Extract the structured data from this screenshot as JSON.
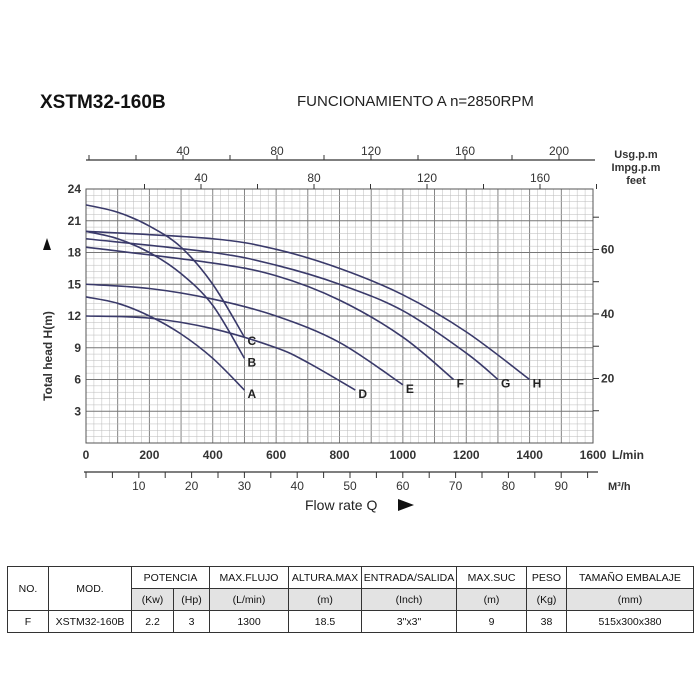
{
  "header": {
    "model": "XSTM32-160B",
    "subtitle": "FUNCIONAMIENTO A n=2850RPM"
  },
  "chart_data": {
    "type": "line",
    "xlabel": "Flow rate Q",
    "ylabel": "Total head H(m)",
    "x_unit": "L/min",
    "xlim": [
      0,
      1600
    ],
    "ylim": [
      0,
      24
    ],
    "x_ticks": [
      0,
      200,
      400,
      600,
      800,
      1000,
      1200,
      1400,
      1600
    ],
    "y_ticks": [
      3,
      6,
      9,
      12,
      15,
      18,
      21,
      24
    ],
    "grid": true,
    "secondary_axes": {
      "usgpm": {
        "label": "Usg.p.m",
        "ticks": [
          40,
          80,
          120,
          160,
          200
        ]
      },
      "impgpm": {
        "label": "Impg.p.m",
        "ticks": [
          40,
          80,
          120,
          160
        ]
      },
      "feet": {
        "label": "feet",
        "ticks": [
          20,
          40,
          60
        ]
      },
      "m3h": {
        "label": "M³/h",
        "ticks": [
          10,
          20,
          30,
          40,
          50,
          60,
          70,
          80,
          90
        ]
      }
    },
    "line_color": "#3a3a6a",
    "series": [
      {
        "name": "A",
        "points": [
          [
            0,
            13.8
          ],
          [
            100,
            13.2
          ],
          [
            200,
            12
          ],
          [
            300,
            10.3
          ],
          [
            400,
            8
          ],
          [
            500,
            5
          ]
        ]
      },
      {
        "name": "B",
        "points": [
          [
            0,
            20
          ],
          [
            100,
            19.3
          ],
          [
            200,
            18
          ],
          [
            300,
            16
          ],
          [
            400,
            13
          ],
          [
            500,
            8
          ]
        ]
      },
      {
        "name": "C",
        "points": [
          [
            0,
            22.5
          ],
          [
            100,
            21.8
          ],
          [
            200,
            20.5
          ],
          [
            300,
            18.5
          ],
          [
            400,
            15
          ],
          [
            500,
            10
          ]
        ]
      },
      {
        "name": "D",
        "points": [
          [
            0,
            12
          ],
          [
            200,
            11.8
          ],
          [
            400,
            10.8
          ],
          [
            600,
            9
          ],
          [
            700,
            7.6
          ],
          [
            850,
            5
          ]
        ]
      },
      {
        "name": "E",
        "points": [
          [
            0,
            15
          ],
          [
            200,
            14.6
          ],
          [
            400,
            13.6
          ],
          [
            600,
            12
          ],
          [
            800,
            9.5
          ],
          [
            1000,
            5.5
          ]
        ]
      },
      {
        "name": "F",
        "points": [
          [
            0,
            18.5
          ],
          [
            400,
            17
          ],
          [
            600,
            15.8
          ],
          [
            800,
            13.5
          ],
          [
            1000,
            10
          ],
          [
            1160,
            6
          ]
        ]
      },
      {
        "name": "G",
        "points": [
          [
            0,
            19.3
          ],
          [
            400,
            18
          ],
          [
            600,
            16.8
          ],
          [
            800,
            15
          ],
          [
            1000,
            12.5
          ],
          [
            1200,
            8.5
          ],
          [
            1300,
            6
          ]
        ]
      },
      {
        "name": "H",
        "points": [
          [
            0,
            20
          ],
          [
            400,
            19.3
          ],
          [
            600,
            18.3
          ],
          [
            800,
            16.5
          ],
          [
            1000,
            14
          ],
          [
            1200,
            10.5
          ],
          [
            1400,
            6
          ]
        ]
      }
    ]
  },
  "table": {
    "headers": {
      "no": "NO.",
      "mod": "MOD.",
      "potencia": "POTENCIA",
      "flujo": "MAX.FLUJO",
      "altura": "ALTURA.MAX",
      "entrada": "ENTRADA/SALIDA",
      "suc": "MAX.SUC",
      "peso": "PESO",
      "tamano": "TAMAÑO EMBALAJE"
    },
    "units": {
      "kw": "(Kw)",
      "hp": "(Hp)",
      "flujo": "(L/min)",
      "altura": "(m)",
      "entrada": "(Inch)",
      "suc": "(m)",
      "peso": "(Kg)",
      "tamano": "(mm)"
    },
    "row": {
      "no": "F",
      "mod": "XSTM32-160B",
      "kw": "2.2",
      "hp": "3",
      "flujo": "1300",
      "altura": "18.5",
      "entrada": "3\"x3\"",
      "suc": "9",
      "peso": "38",
      "tamano": "515x300x380"
    }
  }
}
